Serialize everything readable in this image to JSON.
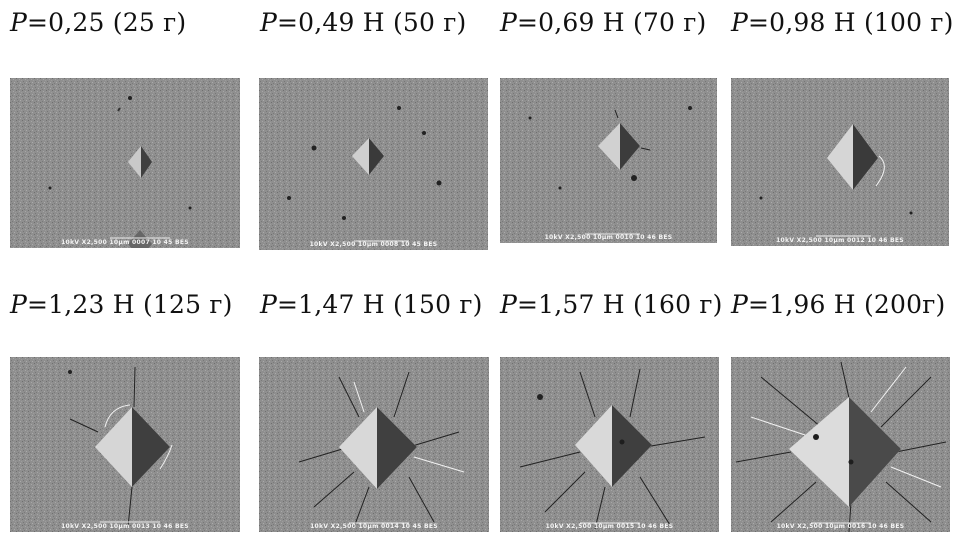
{
  "panels": [
    {
      "p_symbol": "P",
      "value": "=0,25  (25 г)",
      "footer": "10kV   X2,500   10µm   0007   10 45 BES"
    },
    {
      "p_symbol": "P",
      "value": "=0,49 Н (50 г)",
      "footer": "10kV   X2,500   10µm   0008   10 45 BES"
    },
    {
      "p_symbol": "P",
      "value": "=0,69 Н (70 г)",
      "footer": "10kV   X2,500   10µm   0010   10 46 BES"
    },
    {
      "p_symbol": "P",
      "value": "=0,98 Н (100 г)",
      "footer": "10kV   X2,500   10µm   0012   10 46 BES"
    },
    {
      "p_symbol": "P",
      "value": "=1,23 Н (125 г)",
      "footer": "10kV   X2,500   10µm   0013   10 46 BES"
    },
    {
      "p_symbol": "P",
      "value": "=1,47 Н (150 г)",
      "footer": "10kV   X2,500   10µm   0014   10 45 BES"
    },
    {
      "p_symbol": "P",
      "value": "=1,57 Н (160 г)",
      "footer": "10kV   X2,500   10µm   0015   10 46 BES"
    },
    {
      "p_symbol": "P",
      "value": "=1,96 Н (200г)",
      "footer": "10kV   X2,500   10µm   0016   10 46 BES"
    }
  ]
}
